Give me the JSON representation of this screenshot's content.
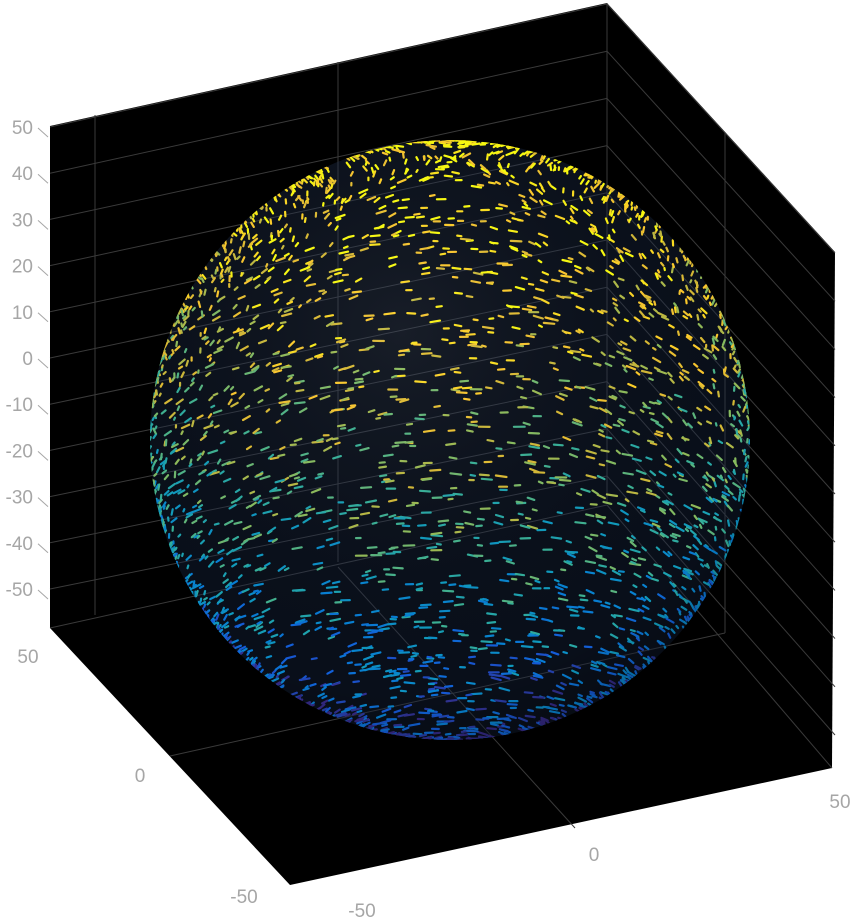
{
  "chart_data": {
    "type": "scatter",
    "subtype": "3d-point-cloud",
    "shape": "sphere",
    "center": [
      0,
      0,
      0
    ],
    "radius": 50,
    "colormap": "parula",
    "color_by": "z",
    "background": "#000000",
    "grid": true,
    "xlim": [
      -50,
      50
    ],
    "ylim": [
      -50,
      50
    ],
    "zlim": [
      -55,
      55
    ],
    "x_ticks": [
      -50,
      0,
      50
    ],
    "y_ticks": [
      50,
      0,
      -50
    ],
    "z_ticks": [
      50,
      40,
      30,
      20,
      10,
      0,
      -10,
      -20,
      -30,
      -40,
      -50
    ],
    "x_tick_labels": [
      "-50",
      "0",
      "50"
    ],
    "y_tick_labels": [
      "50",
      "0",
      "-50"
    ],
    "z_tick_labels": [
      "50",
      "40",
      "30",
      "20",
      "10",
      "0",
      "-10",
      "-20",
      "-30",
      "-40",
      "-50"
    ]
  }
}
